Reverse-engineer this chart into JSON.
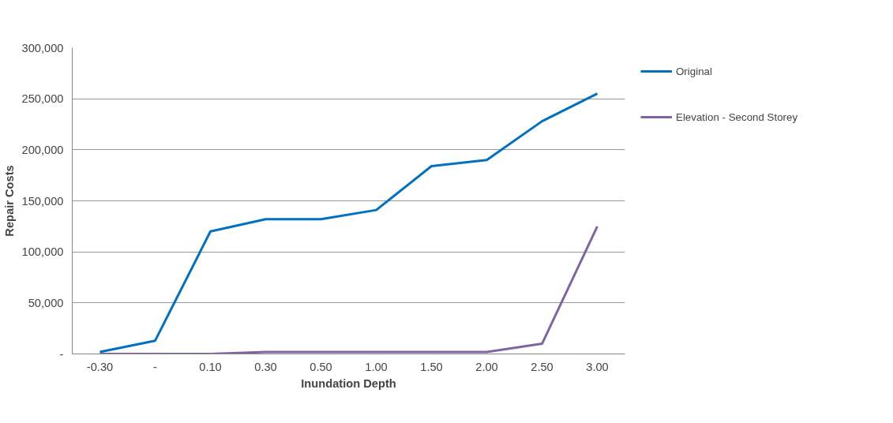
{
  "chart_data": {
    "type": "line",
    "xlabel": "Inundation Depth",
    "ylabel": "Repair Costs",
    "categories": [
      "-0.30",
      "-",
      "0.10",
      "0.30",
      "0.50",
      "1.00",
      "1.50",
      "2.00",
      "2.50",
      "3.00"
    ],
    "series": [
      {
        "name": "Original",
        "color": "#0070c0",
        "values": [
          2000,
          13000,
          120000,
          132000,
          132000,
          141000,
          184000,
          190000,
          228000,
          255000
        ]
      },
      {
        "name": "Elevation - Second Storey",
        "color": "#8064a2",
        "values": [
          0,
          0,
          0,
          2000,
          2000,
          2000,
          2000,
          2000,
          10000,
          125000
        ]
      }
    ],
    "ylim": [
      0,
      300000
    ],
    "yticks": [
      {
        "value": 0,
        "label": "-"
      },
      {
        "value": 50000,
        "label": "50,000"
      },
      {
        "value": 100000,
        "label": "100,000"
      },
      {
        "value": 150000,
        "label": "150,000"
      },
      {
        "value": 200000,
        "label": "200,000"
      },
      {
        "value": 250000,
        "label": "250,000"
      },
      {
        "value": 300000,
        "label": "300,000"
      }
    ],
    "grid": "y",
    "legend": "right",
    "marker": "none",
    "line_style": "solid"
  }
}
